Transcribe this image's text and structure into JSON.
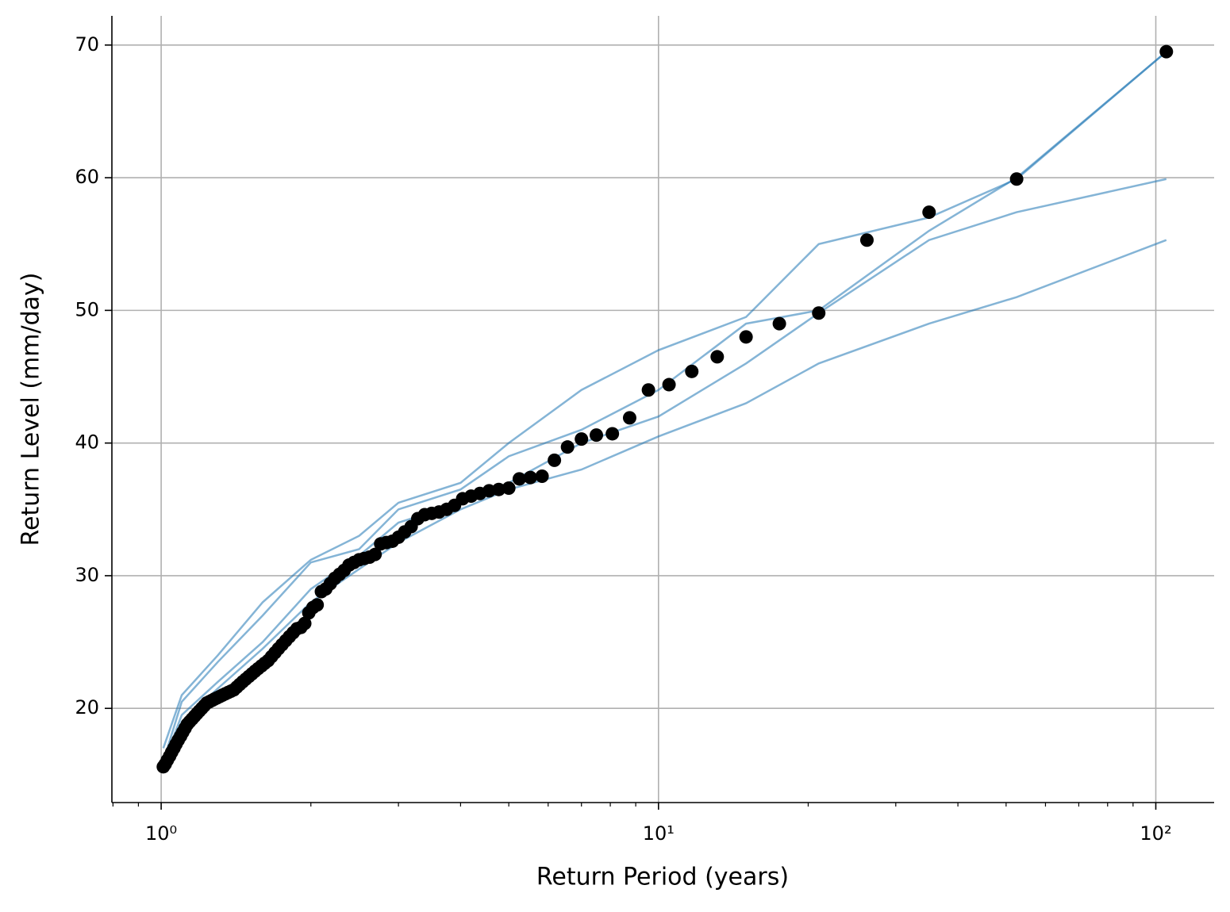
{
  "chart_data": {
    "type": "scatter",
    "xlabel": "Return Period (years)",
    "ylabel": "Return Level (mm/day)",
    "xscale": "log",
    "xlim": [
      0.796,
      131
    ],
    "ylim": [
      12.9,
      72.2
    ],
    "xticks": [
      {
        "value": 1,
        "label": "10⁰"
      },
      {
        "value": 10,
        "label": "10¹"
      },
      {
        "value": 100,
        "label": "10²"
      }
    ],
    "xminorticks": [
      0.8,
      0.9,
      2,
      3,
      4,
      5,
      6,
      7,
      8,
      9,
      20,
      30,
      40,
      50,
      60,
      70,
      80,
      90
    ],
    "yticks": [
      20,
      30,
      40,
      50,
      60,
      70
    ],
    "grid": true,
    "color": "#000000",
    "x": [
      105,
      52.5,
      35,
      26.25,
      21,
      17.5,
      15,
      13.125,
      11.667,
      10.5,
      9.545,
      8.75,
      8.077,
      7.5,
      7,
      6.563,
      6.176,
      5.833,
      5.526,
      5.25,
      5,
      4.773,
      4.565,
      4.375,
      4.2,
      4.038,
      3.889,
      3.75,
      3.621,
      3.5,
      3.387,
      3.281,
      3.182,
      3.088,
      3,
      2.917,
      2.838,
      2.763,
      2.692,
      2.625,
      2.561,
      2.5,
      2.442,
      2.386,
      2.333,
      2.283,
      2.234,
      2.188,
      2.143,
      2.1,
      2.059,
      2.019,
      1.981,
      1.944,
      1.909,
      1.875,
      1.842,
      1.81,
      1.78,
      1.75,
      1.721,
      1.694,
      1.667,
      1.641,
      1.615,
      1.591,
      1.567,
      1.544,
      1.522,
      1.5,
      1.479,
      1.458,
      1.438,
      1.419,
      1.4,
      1.382,
      1.364,
      1.346,
      1.329,
      1.313,
      1.296,
      1.28,
      1.265,
      1.25,
      1.235,
      1.221,
      1.207,
      1.193,
      1.18,
      1.167,
      1.154,
      1.141,
      1.129,
      1.117,
      1.105,
      1.094,
      1.082,
      1.071,
      1.061,
      1.05,
      1.04,
      1.029,
      1.019,
      1.01
    ],
    "values": [
      69.5,
      59.9,
      57.4,
      55.3,
      49.8,
      49.0,
      48.0,
      46.5,
      45.4,
      44.4,
      44.0,
      41.9,
      40.7,
      40.6,
      40.3,
      39.7,
      38.7,
      37.5,
      37.4,
      37.3,
      36.6,
      36.5,
      36.4,
      36.2,
      36.0,
      35.8,
      35.3,
      35.0,
      34.8,
      34.7,
      34.6,
      34.3,
      33.7,
      33.3,
      32.9,
      32.6,
      32.5,
      32.4,
      31.6,
      31.4,
      31.3,
      31.2,
      31.0,
      30.8,
      30.4,
      30.1,
      29.8,
      29.4,
      29.0,
      28.8,
      27.8,
      27.6,
      27.2,
      26.4,
      26.1,
      26.0,
      25.7,
      25.4,
      25.1,
      24.8,
      24.5,
      24.2,
      23.9,
      23.6,
      23.4,
      23.2,
      23.0,
      22.8,
      22.6,
      22.4,
      22.2,
      22.0,
      21.8,
      21.6,
      21.4,
      21.3,
      21.2,
      21.1,
      21.0,
      20.9,
      20.8,
      20.7,
      20.6,
      20.5,
      20.4,
      20.2,
      20.0,
      19.8,
      19.6,
      19.4,
      19.2,
      19.0,
      18.8,
      18.5,
      18.2,
      17.9,
      17.6,
      17.3,
      17.0,
      16.7,
      16.4,
      16.1,
      15.8,
      15.6
    ],
    "lines": [
      {
        "color": "#1f77b4",
        "x": [
          1.01,
          1.1,
          1.3,
          1.6,
          2,
          2.5,
          3,
          4,
          5,
          7,
          10,
          15,
          21,
          35,
          52.5,
          105
        ],
        "values": [
          16,
          20.5,
          23.5,
          27,
          31,
          32,
          35,
          36.5,
          39,
          41,
          44,
          49,
          50,
          56,
          60,
          69.5
        ]
      },
      {
        "color": "#1f77b4",
        "x": [
          1.01,
          1.1,
          1.3,
          1.6,
          2,
          2.5,
          3,
          4,
          5,
          7,
          10,
          15,
          21,
          35,
          52.5,
          105
        ],
        "values": [
          15.8,
          19.5,
          22,
          25,
          29,
          31.5,
          34,
          35.5,
          37,
          40,
          42,
          46,
          49.8,
          55.3,
          57.4,
          59.9
        ]
      },
      {
        "color": "#1f77b4",
        "x": [
          1.01,
          1.1,
          1.3,
          1.6,
          2,
          2.5,
          3,
          4,
          5,
          7,
          10,
          15,
          21,
          35,
          52.5,
          105
        ],
        "values": [
          17,
          21,
          24,
          28,
          31.2,
          33,
          35.5,
          37,
          40,
          44,
          47,
          49.5,
          55,
          57,
          59.9,
          69.5
        ]
      },
      {
        "color": "#1f77b4",
        "x": [
          1.01,
          1.1,
          1.3,
          1.6,
          2,
          2.5,
          3,
          4,
          5,
          7,
          10,
          15,
          21,
          35,
          52.5,
          105
        ],
        "values": [
          15.6,
          19,
          21.5,
          24.5,
          28,
          30.5,
          32.5,
          35,
          36.5,
          38,
          40.5,
          43,
          46,
          49,
          51,
          55.3
        ]
      }
    ]
  }
}
